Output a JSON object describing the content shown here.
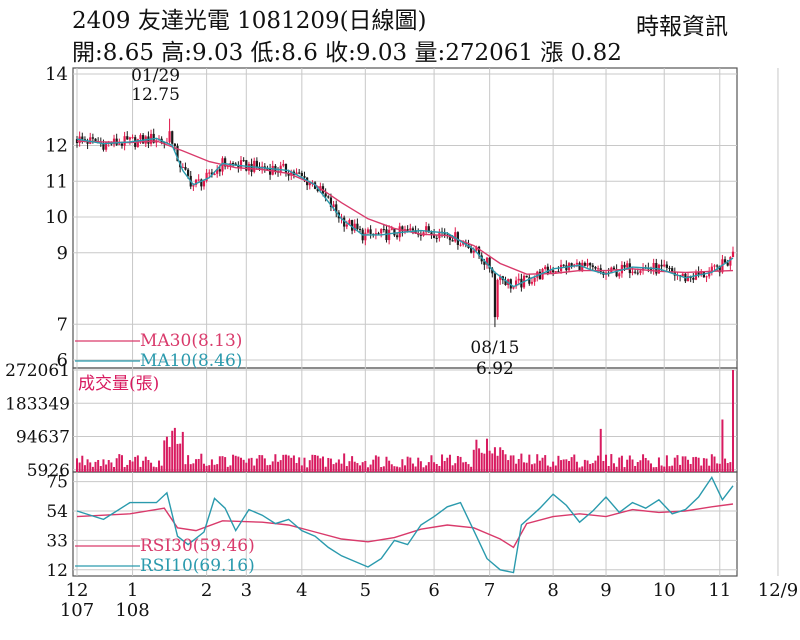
{
  "header": {
    "stock_title": "2409  友達光電 1081209(日線圖)",
    "source": "時報資訊",
    "quote_line": "開:8.65 高:9.03 低:8.6 收:9.03 量:272061 漲 0.82"
  },
  "colors": {
    "candle_up": "#e0194c",
    "candle_down": "#1a1a1a",
    "ma30": "#d93a6b",
    "ma10": "#2a9aad",
    "volume": "#d81b60",
    "rsi30": "#d93a6b",
    "rsi10": "#2a9aad",
    "grid": "#c8c8c8",
    "frame": "#555555"
  },
  "chart_data": [
    {
      "type": "candlestick",
      "panel": "price",
      "ylim": [
        6,
        14
      ],
      "y_ticks": [
        "14",
        "12",
        "11",
        "10",
        "9",
        "7",
        "6"
      ],
      "y_tick_values": [
        14,
        12,
        11,
        10,
        9,
        7,
        6
      ],
      "grid": true,
      "annotations": [
        {
          "date_label": "01/29",
          "value_label": "12.75",
          "kind": "high",
          "x": 35
        },
        {
          "date_label": "08/15",
          "value_label": "6.92",
          "kind": "low",
          "x": 158
        }
      ],
      "legend": [
        {
          "label": "MA30(8.13)",
          "color": "#d93a6b"
        },
        {
          "label": "MA10(8.46)",
          "color": "#2a9aad"
        }
      ],
      "series": [
        {
          "name": "MA30",
          "points": [
            [
              0,
              12.12
            ],
            [
              20,
              12.08
            ],
            [
              30,
              12.13
            ],
            [
              40,
              11.85
            ],
            [
              50,
              11.55
            ],
            [
              60,
              11.38
            ],
            [
              70,
              11.33
            ],
            [
              80,
              11.22
            ],
            [
              90,
              10.9
            ],
            [
              100,
              10.4
            ],
            [
              110,
              9.95
            ],
            [
              120,
              9.68
            ],
            [
              130,
              9.52
            ],
            [
              140,
              9.48
            ],
            [
              150,
              9.2
            ],
            [
              160,
              8.7
            ],
            [
              170,
              8.4
            ],
            [
              180,
              8.42
            ],
            [
              190,
              8.5
            ],
            [
              200,
              8.5
            ],
            [
              210,
              8.55
            ],
            [
              220,
              8.48
            ],
            [
              230,
              8.45
            ],
            [
              240,
              8.48
            ],
            [
              248,
              8.5
            ]
          ]
        },
        {
          "name": "MA10",
          "points": [
            [
              0,
              12.18
            ],
            [
              10,
              12.05
            ],
            [
              20,
              12.1
            ],
            [
              30,
              12.2
            ],
            [
              36,
              12.0
            ],
            [
              40,
              11.3
            ],
            [
              44,
              10.9
            ],
            [
              50,
              11.1
            ],
            [
              55,
              11.5
            ],
            [
              60,
              11.45
            ],
            [
              70,
              11.38
            ],
            [
              80,
              11.3
            ],
            [
              90,
              10.9
            ],
            [
              100,
              9.95
            ],
            [
              108,
              9.5
            ],
            [
              115,
              9.5
            ],
            [
              120,
              9.55
            ],
            [
              130,
              9.62
            ],
            [
              140,
              9.55
            ],
            [
              150,
              9.1
            ],
            [
              158,
              8.45
            ],
            [
              165,
              8.05
            ],
            [
              172,
              8.3
            ],
            [
              180,
              8.55
            ],
            [
              190,
              8.65
            ],
            [
              195,
              8.5
            ],
            [
              200,
              8.4
            ],
            [
              210,
              8.6
            ],
            [
              220,
              8.55
            ],
            [
              230,
              8.3
            ],
            [
              240,
              8.45
            ],
            [
              248,
              8.85
            ]
          ]
        }
      ],
      "candles_y_range": [
        6.92,
        12.75
      ]
    },
    {
      "type": "bar",
      "panel": "volume",
      "title": "成交量(張)",
      "ylim": [
        0,
        272061
      ],
      "y_ticks": [
        "272061",
        "183349",
        "94637",
        "5926"
      ],
      "y_tick_values": [
        272061,
        183349,
        94637,
        5926
      ]
    },
    {
      "type": "line",
      "panel": "rsi",
      "ylim": [
        9,
        79
      ],
      "y_ticks": [
        "75",
        "54",
        "33",
        "12"
      ],
      "y_tick_values": [
        75,
        54,
        33,
        12
      ],
      "legend": [
        {
          "label": "RSI30(59.46)",
          "color": "#d93a6b"
        },
        {
          "label": "RSI10(69.16)",
          "color": "#2a9aad"
        }
      ],
      "series": [
        {
          "name": "RSI30",
          "points": [
            [
              0,
              50
            ],
            [
              20,
              52
            ],
            [
              33,
              56
            ],
            [
              38,
              42
            ],
            [
              45,
              40
            ],
            [
              55,
              47
            ],
            [
              70,
              46
            ],
            [
              80,
              44
            ],
            [
              90,
              39
            ],
            [
              100,
              34
            ],
            [
              110,
              32
            ],
            [
              120,
              35
            ],
            [
              130,
              41
            ],
            [
              140,
              44
            ],
            [
              150,
              42
            ],
            [
              160,
              34
            ],
            [
              165,
              28
            ],
            [
              170,
              45
            ],
            [
              180,
              50
            ],
            [
              190,
              52
            ],
            [
              200,
              50
            ],
            [
              210,
              55
            ],
            [
              220,
              53
            ],
            [
              230,
              54
            ],
            [
              240,
              57
            ],
            [
              248,
              59
            ]
          ]
        },
        {
          "name": "RSI10",
          "points": [
            [
              0,
              54
            ],
            [
              10,
              48
            ],
            [
              20,
              60
            ],
            [
              30,
              60
            ],
            [
              34,
              67
            ],
            [
              38,
              36
            ],
            [
              42,
              30
            ],
            [
              48,
              39
            ],
            [
              52,
              63
            ],
            [
              56,
              56
            ],
            [
              60,
              40
            ],
            [
              65,
              55
            ],
            [
              70,
              51
            ],
            [
              75,
              45
            ],
            [
              80,
              48
            ],
            [
              85,
              40
            ],
            [
              90,
              36
            ],
            [
              95,
              28
            ],
            [
              100,
              22
            ],
            [
              105,
              18
            ],
            [
              110,
              14
            ],
            [
              115,
              20
            ],
            [
              120,
              33
            ],
            [
              125,
              30
            ],
            [
              130,
              44
            ],
            [
              135,
              50
            ],
            [
              140,
              57
            ],
            [
              145,
              60
            ],
            [
              150,
              40
            ],
            [
              155,
              20
            ],
            [
              160,
              12
            ],
            [
              165,
              10
            ],
            [
              168,
              44
            ],
            [
              175,
              56
            ],
            [
              180,
              66
            ],
            [
              185,
              58
            ],
            [
              190,
              46
            ],
            [
              195,
              54
            ],
            [
              200,
              64
            ],
            [
              205,
              53
            ],
            [
              210,
              60
            ],
            [
              215,
              56
            ],
            [
              220,
              62
            ],
            [
              225,
              52
            ],
            [
              230,
              55
            ],
            [
              235,
              64
            ],
            [
              240,
              78
            ],
            [
              244,
              62
            ],
            [
              248,
              72
            ]
          ]
        }
      ]
    }
  ],
  "x_axis": {
    "ticks": [
      {
        "label": "12",
        "sub": "107",
        "x": 0
      },
      {
        "label": "1",
        "sub": "108",
        "x": 21
      },
      {
        "label": "2",
        "sub": "",
        "x": 49
      },
      {
        "label": "3",
        "sub": "",
        "x": 64
      },
      {
        "label": "4",
        "sub": "",
        "x": 85
      },
      {
        "label": "5",
        "sub": "",
        "x": 109
      },
      {
        "label": "6",
        "sub": "",
        "x": 135
      },
      {
        "label": "7",
        "sub": "",
        "x": 156
      },
      {
        "label": "8",
        "sub": "",
        "x": 180
      },
      {
        "label": "9",
        "sub": "",
        "x": 200
      },
      {
        "label": "10",
        "sub": "",
        "x": 222
      },
      {
        "label": "11",
        "sub": "",
        "x": 243
      },
      {
        "label": "12/9",
        "sub": "",
        "x": 265
      }
    ]
  }
}
